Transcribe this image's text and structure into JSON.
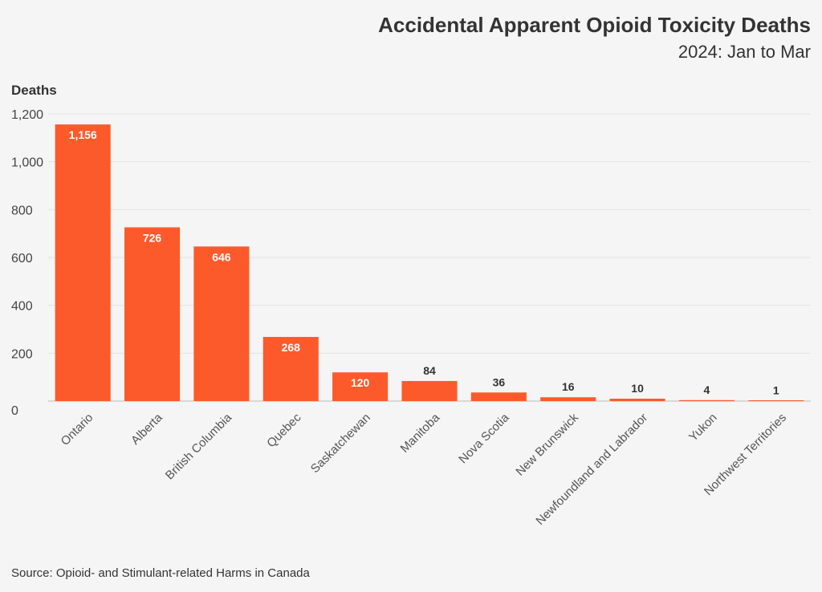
{
  "chart_data": {
    "type": "bar",
    "title": "Accidental Apparent Opioid Toxicity Deaths",
    "subtitle": "2024: Jan to Mar",
    "ylabel": "Deaths",
    "xlabel": "",
    "source": "Source: Opioid- and Stimulant-related Harms in Canada",
    "categories": [
      "Ontario",
      "Alberta",
      "British Columbia",
      "Quebec",
      "Saskatchewan",
      "Manitoba",
      "Nova Scotia",
      "New Brunswick",
      "Newfoundland and Labrador",
      "Yukon",
      "Northwest Territories"
    ],
    "values": [
      1156,
      726,
      646,
      268,
      120,
      84,
      36,
      16,
      10,
      4,
      1
    ],
    "value_labels": [
      "1,156",
      "726",
      "646",
      "268",
      "120",
      "84",
      "36",
      "16",
      "10",
      "4",
      "1"
    ],
    "ylim": [
      0,
      1200
    ],
    "yticks": [
      0,
      200,
      400,
      600,
      800,
      1000,
      1200
    ],
    "ytick_labels": [
      "0",
      "200",
      "400",
      "600",
      "800",
      "1,000",
      "1,200"
    ],
    "grid": true,
    "bar_color": "#fd5a2c",
    "label_inside_color": "#ffffff",
    "label_outside_color": "#333333"
  }
}
